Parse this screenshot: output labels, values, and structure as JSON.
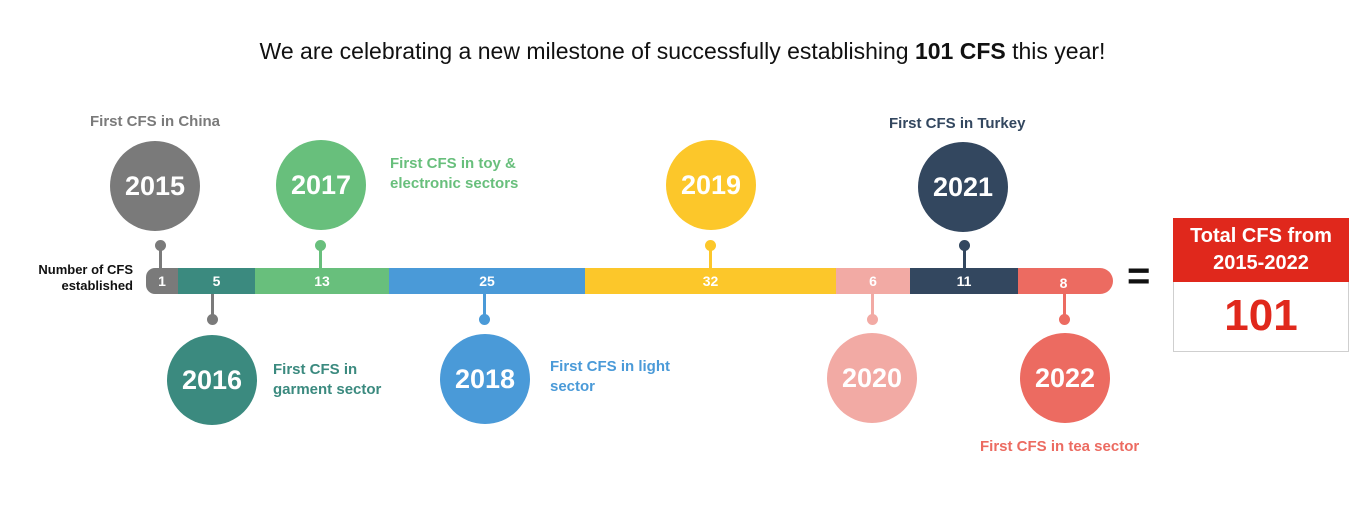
{
  "title": {
    "prefix": "We are celebrating a new milestone of successfully establishing ",
    "bold": "101 CFS",
    "suffix": " this year!"
  },
  "axis_label": {
    "line1": "Number of CFS",
    "line2": "established"
  },
  "milestones": [
    {
      "year": "2015",
      "count": "1",
      "caption": [
        "First CFS in China"
      ],
      "color": "#7a7a7a"
    },
    {
      "year": "2016",
      "count": "5",
      "caption": [
        "First CFS in",
        "garment sector"
      ],
      "color": "#3b8a7f"
    },
    {
      "year": "2017",
      "count": "13",
      "caption": [
        "First CFS in toy &",
        "electronic sectors"
      ],
      "color": "#68bf7c"
    },
    {
      "year": "2018",
      "count": "25",
      "caption": [
        "First CFS in light",
        "sector"
      ],
      "color": "#4a9ad8"
    },
    {
      "year": "2019",
      "count": "32",
      "caption": [],
      "color": "#fcc72a"
    },
    {
      "year": "2020",
      "count": "6",
      "caption": [],
      "color": "#f2aaa4"
    },
    {
      "year": "2021",
      "count": "11",
      "caption": [
        "First CFS in Turkey"
      ],
      "color": "#33475f"
    },
    {
      "year": "2022",
      "count": "8",
      "caption": [
        "First CFS in tea sector"
      ],
      "color": "#ec6b61"
    }
  ],
  "equals": "=",
  "total": {
    "label_line1": "Total CFS from",
    "label_line2": "2015-2022",
    "value": "101"
  }
}
